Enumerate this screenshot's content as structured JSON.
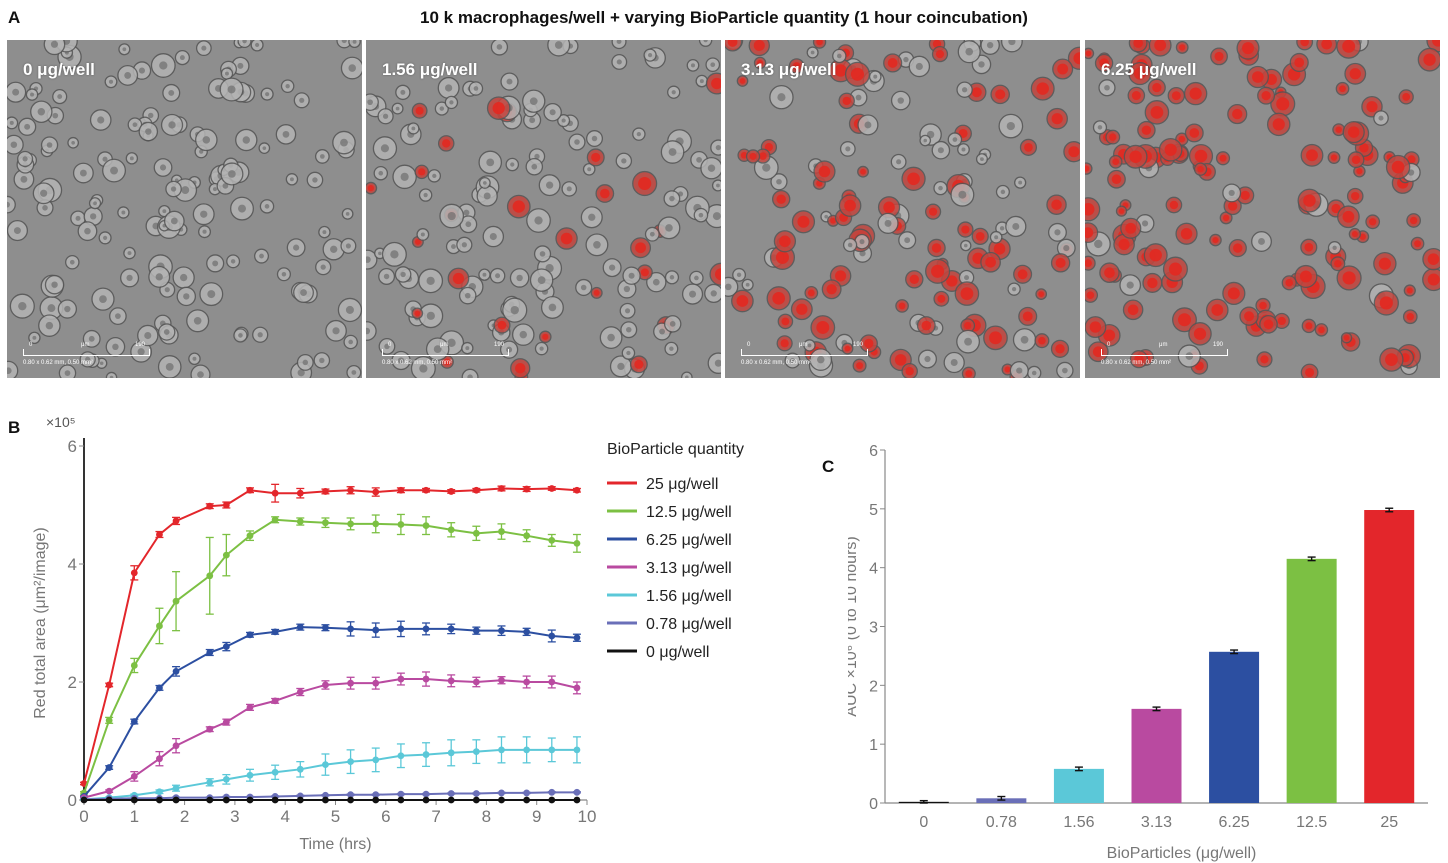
{
  "panels": {
    "a": {
      "letter": "A"
    },
    "b": {
      "letter": "B"
    },
    "c": {
      "letter": "C"
    }
  },
  "main_title": "10 k macrophages/well  +  varying BioParticle quantity (1 hour coincubation)",
  "images": [
    {
      "label": "0 μg/well",
      "red_level": 0.0
    },
    {
      "label": "1.56 μg/well",
      "red_level": 0.25
    },
    {
      "label": "3.13 μg/well",
      "red_level": 0.55
    },
    {
      "label": "6.25 μg/well",
      "red_level": 0.9
    }
  ],
  "scale_bar": {
    "start": "0",
    "unit": "μm",
    "end": "190",
    "footer": "0.80 x 0.62 mm, 0.50 mm²"
  },
  "colors": {
    "red": "#e3262b",
    "green": "#7cc043",
    "darkblue": "#2c4fa1",
    "magenta": "#b94aa0",
    "cyan": "#5bc8d8",
    "purple": "#6a6fb8",
    "black": "#111111",
    "grey": "#777777"
  },
  "chart_data": [
    {
      "type": "line",
      "multiplier": "×10⁵",
      "xlabel": "Time (hrs)",
      "ylabel": "Red total area (μm²/image)",
      "xlim": [
        0,
        10
      ],
      "ylim": [
        0,
        6
      ],
      "xticks": [
        0,
        1,
        2,
        3,
        4,
        5,
        6,
        7,
        8,
        9,
        10
      ],
      "yticks": [
        0,
        2,
        4,
        6
      ],
      "legend_title": "BioParticle quantity",
      "legend_position": "right",
      "x": [
        0,
        0.5,
        1,
        1.5,
        1.83,
        2.5,
        2.83,
        3.3,
        3.8,
        4.3,
        4.8,
        5.3,
        5.8,
        6.3,
        6.8,
        7.3,
        7.8,
        8.3,
        8.8,
        9.3,
        9.8
      ],
      "series": [
        {
          "name": "25 μg/well",
          "color_key": "red",
          "values": [
            0.28,
            1.95,
            3.85,
            4.5,
            4.73,
            4.98,
            5.0,
            5.25,
            5.2,
            5.2,
            5.23,
            5.25,
            5.22,
            5.25,
            5.25,
            5.23,
            5.25,
            5.28,
            5.27,
            5.28,
            5.25
          ],
          "errors": [
            0.02,
            0.03,
            0.12,
            0.05,
            0.06,
            0.04,
            0.05,
            0.04,
            0.15,
            0.08,
            0.04,
            0.06,
            0.07,
            0.04,
            0.03,
            0.03,
            0.03,
            0.04,
            0.04,
            0.03,
            0.03
          ]
        },
        {
          "name": "12.5 μg/well",
          "color_key": "green",
          "values": [
            0.12,
            1.35,
            2.28,
            2.95,
            3.37,
            3.8,
            4.15,
            4.48,
            4.75,
            4.72,
            4.7,
            4.68,
            4.68,
            4.67,
            4.65,
            4.58,
            4.52,
            4.55,
            4.48,
            4.4,
            4.35
          ],
          "errors": [
            0.02,
            0.05,
            0.12,
            0.3,
            0.5,
            0.65,
            0.35,
            0.08,
            0.05,
            0.06,
            0.08,
            0.1,
            0.15,
            0.17,
            0.15,
            0.12,
            0.12,
            0.13,
            0.1,
            0.1,
            0.15
          ]
        },
        {
          "name": "6.25 μg/well",
          "color_key": "darkblue",
          "values": [
            0.06,
            0.55,
            1.33,
            1.9,
            2.18,
            2.5,
            2.6,
            2.8,
            2.85,
            2.93,
            2.92,
            2.9,
            2.88,
            2.9,
            2.9,
            2.9,
            2.87,
            2.87,
            2.85,
            2.78,
            2.75
          ],
          "errors": [
            0.01,
            0.03,
            0.04,
            0.04,
            0.08,
            0.05,
            0.07,
            0.04,
            0.04,
            0.05,
            0.05,
            0.12,
            0.12,
            0.13,
            0.1,
            0.08,
            0.06,
            0.08,
            0.06,
            0.1,
            0.06
          ]
        },
        {
          "name": "3.13 μg/well",
          "color_key": "magenta",
          "values": [
            0.04,
            0.15,
            0.4,
            0.7,
            0.92,
            1.2,
            1.32,
            1.57,
            1.68,
            1.83,
            1.95,
            1.98,
            1.98,
            2.05,
            2.05,
            2.02,
            2.0,
            2.03,
            2.0,
            2.0,
            1.9
          ],
          "errors": [
            0.01,
            0.02,
            0.08,
            0.12,
            0.12,
            0.04,
            0.05,
            0.05,
            0.04,
            0.06,
            0.07,
            0.1,
            0.1,
            0.1,
            0.12,
            0.1,
            0.08,
            0.06,
            0.1,
            0.1,
            0.1
          ]
        },
        {
          "name": "1.56 μg/well",
          "color_key": "cyan",
          "values": [
            0.01,
            0.04,
            0.08,
            0.14,
            0.2,
            0.3,
            0.35,
            0.42,
            0.47,
            0.52,
            0.6,
            0.65,
            0.68,
            0.75,
            0.77,
            0.8,
            0.82,
            0.85,
            0.85,
            0.85,
            0.85
          ],
          "errors": [
            0.01,
            0.01,
            0.02,
            0.03,
            0.05,
            0.06,
            0.08,
            0.1,
            0.12,
            0.13,
            0.18,
            0.2,
            0.2,
            0.2,
            0.2,
            0.22,
            0.2,
            0.22,
            0.22,
            0.2,
            0.22
          ]
        },
        {
          "name": "0.78 μg/well",
          "color_key": "purple",
          "values": [
            0.01,
            0.02,
            0.03,
            0.03,
            0.04,
            0.04,
            0.05,
            0.05,
            0.06,
            0.07,
            0.08,
            0.09,
            0.09,
            0.1,
            0.1,
            0.11,
            0.11,
            0.12,
            0.12,
            0.13,
            0.13
          ],
          "errors": [
            0.0,
            0.0,
            0.0,
            0.01,
            0.01,
            0.01,
            0.01,
            0.01,
            0.01,
            0.01,
            0.01,
            0.01,
            0.01,
            0.01,
            0.01,
            0.01,
            0.01,
            0.01,
            0.01,
            0.01,
            0.01
          ]
        },
        {
          "name": "0 μg/well",
          "color_key": "black",
          "values": [
            0,
            0,
            0,
            0,
            0,
            0,
            0,
            0,
            0,
            0,
            0,
            0,
            0,
            0,
            0,
            0,
            0,
            0,
            0,
            0,
            0
          ],
          "errors": [
            0,
            0,
            0,
            0,
            0,
            0,
            0,
            0,
            0,
            0,
            0,
            0,
            0,
            0,
            0,
            0,
            0,
            0,
            0,
            0,
            0
          ]
        }
      ]
    },
    {
      "type": "bar",
      "xlabel": "BioParticles (μg/well)",
      "ylabel": "AUC ×10⁶ (0 to 10 hours)",
      "ylim": [
        0,
        6
      ],
      "yticks": [
        0,
        1,
        2,
        3,
        4,
        5,
        6
      ],
      "categories": [
        "0",
        "0.78",
        "1.56",
        "3.13",
        "6.25",
        "12.5",
        "25"
      ],
      "values": [
        0.02,
        0.08,
        0.58,
        1.6,
        2.57,
        4.15,
        4.98
      ],
      "errors": [
        0.02,
        0.03,
        0.03,
        0.03,
        0.03,
        0.03,
        0.03
      ],
      "color_keys": [
        "black",
        "purple",
        "cyan",
        "magenta",
        "darkblue",
        "green",
        "red"
      ]
    }
  ]
}
